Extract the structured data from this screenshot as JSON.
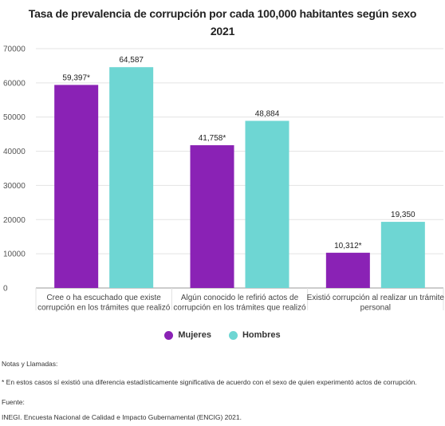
{
  "chart_data": {
    "type": "bar",
    "title": "Tasa de prevalencia de corrupción por cada 100,000 habitantes según sexo",
    "subtitle": "2021",
    "categories": [
      [
        "Cree o ha escuchado que existe",
        "corrupción en los trámites que realizó"
      ],
      [
        "Algún conocido le refirió actos de",
        "corrupción en los trámites que realizó"
      ],
      [
        "Existió corrupción al realizar un trámite",
        "personal"
      ]
    ],
    "series": [
      {
        "name": "Mujeres",
        "color": "#8A22B5",
        "values": [
          59397,
          41758,
          10312
        ],
        "labels": [
          "59,397*",
          "41,758*",
          "10,312*"
        ]
      },
      {
        "name": "Hombres",
        "color": "#6ED6D3",
        "values": [
          64587,
          48884,
          19350
        ],
        "labels": [
          "64,587",
          "48,884",
          "19,350"
        ]
      }
    ],
    "yticks": [
      "0",
      "10000",
      "20000",
      "30000",
      "40000",
      "50000",
      "60000",
      "70000"
    ],
    "ylim": [
      0,
      70000
    ],
    "grid": true,
    "legend_position": "bottom"
  },
  "notes": {
    "heading": "Notas y Llamadas:",
    "text": "* En estos casos sí existió una diferencia estadísticamente significativa de acuerdo con el sexo de quien experimentó actos de corrupción.",
    "source_heading": "Fuente:",
    "source_text": "INEGI. Encuesta Nacional de Calidad e Impacto Gubernamental (ENCIG) 2021."
  }
}
